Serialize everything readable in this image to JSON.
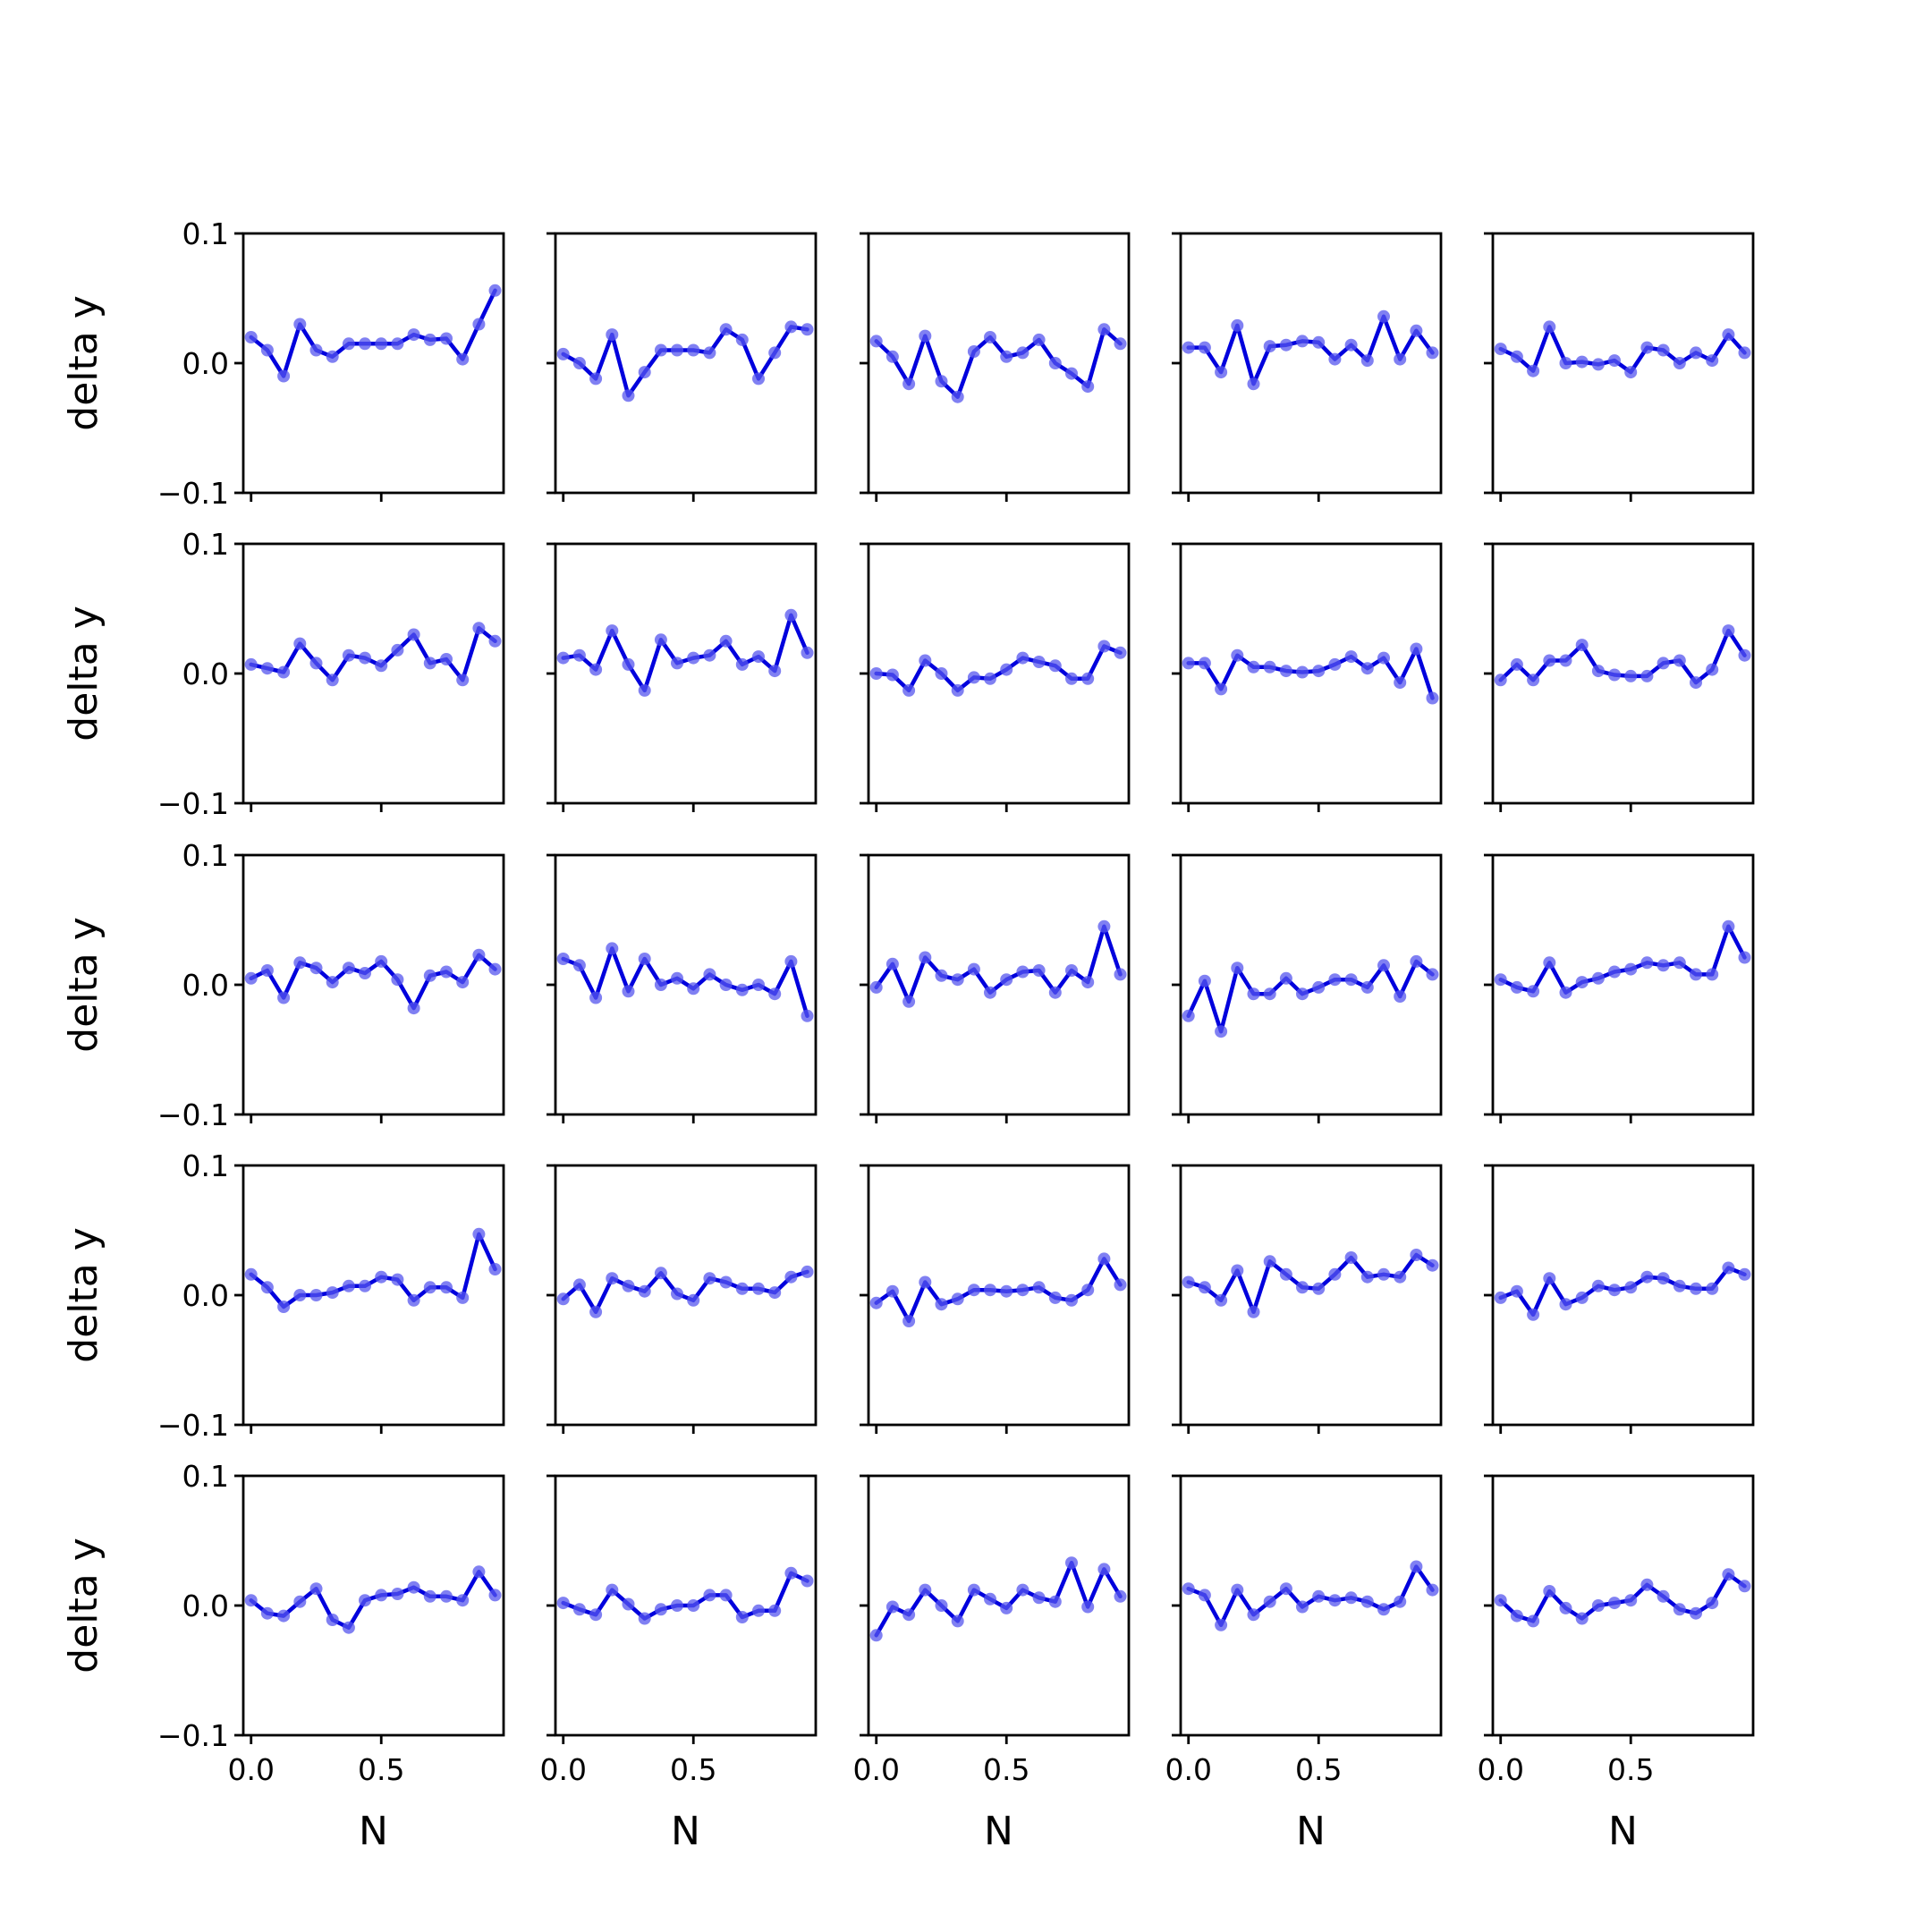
{
  "chart_data": {
    "type": "line",
    "layout": "5x5 grid of subplots",
    "x": [
      0.0,
      0.0625,
      0.125,
      0.1875,
      0.25,
      0.3125,
      0.375,
      0.4375,
      0.5,
      0.5625,
      0.625,
      0.6875,
      0.75,
      0.8125,
      0.875,
      0.9375
    ],
    "ylim": [
      -0.1,
      0.1
    ],
    "xlim": [
      -0.03,
      0.97
    ],
    "yticks": [
      -0.1,
      0.0,
      0.1
    ],
    "xticks": [
      0.0,
      0.5
    ],
    "ytick_labels": [
      "−0.1",
      "0.0",
      "0.1"
    ],
    "xtick_labels": [
      "0.0",
      "0.5"
    ],
    "ylabel": "delta y",
    "xlabel": "N",
    "grid": false,
    "colors": {
      "line": "#0000dd",
      "marker": "#5555ee"
    },
    "panels": [
      [
        0.02,
        0.01,
        -0.01,
        0.03,
        0.01,
        0.005,
        0.015,
        0.015,
        0.015,
        0.015,
        0.022,
        0.018,
        0.019,
        0.003,
        0.03,
        0.056
      ],
      [
        0.007,
        0.0,
        -0.012,
        0.022,
        -0.025,
        -0.007,
        0.01,
        0.01,
        0.01,
        0.008,
        0.026,
        0.018,
        -0.012,
        0.008,
        0.028,
        0.026
      ],
      [
        0.017,
        0.005,
        -0.016,
        0.021,
        -0.014,
        -0.026,
        0.009,
        0.02,
        0.005,
        0.008,
        0.018,
        0.0,
        -0.008,
        -0.018,
        0.026,
        0.015
      ],
      [
        0.012,
        0.012,
        -0.007,
        0.029,
        -0.016,
        0.013,
        0.014,
        0.017,
        0.016,
        0.003,
        0.014,
        0.002,
        0.036,
        0.003,
        0.025,
        0.008
      ],
      [
        0.011,
        0.005,
        -0.006,
        0.028,
        0.0,
        0.001,
        -0.001,
        0.002,
        -0.007,
        0.012,
        0.01,
        0.0,
        0.008,
        0.002,
        0.022,
        0.008
      ],
      [
        0.007,
        0.004,
        0.001,
        0.023,
        0.008,
        -0.005,
        0.014,
        0.012,
        0.006,
        0.018,
        0.03,
        0.008,
        0.011,
        -0.005,
        0.035,
        0.025
      ],
      [
        0.012,
        0.014,
        0.003,
        0.033,
        0.007,
        -0.013,
        0.026,
        0.008,
        0.012,
        0.014,
        0.025,
        0.007,
        0.013,
        0.002,
        0.045,
        0.016
      ],
      [
        0.0,
        -0.001,
        -0.013,
        0.01,
        0.0,
        -0.013,
        -0.003,
        -0.004,
        0.003,
        0.012,
        0.009,
        0.006,
        -0.004,
        -0.004,
        0.021,
        0.016
      ],
      [
        0.008,
        0.008,
        -0.012,
        0.014,
        0.005,
        0.005,
        0.002,
        0.001,
        0.002,
        0.007,
        0.013,
        0.004,
        0.012,
        -0.007,
        0.019,
        -0.019
      ],
      [
        -0.005,
        0.007,
        -0.005,
        0.01,
        0.01,
        0.022,
        0.002,
        -0.001,
        -0.002,
        -0.002,
        0.008,
        0.01,
        -0.007,
        0.003,
        0.033,
        0.014
      ]
    ],
    "panels_rows_3_to_5": [
      [
        0.005,
        0.011,
        -0.01,
        0.017,
        0.013,
        0.002,
        0.013,
        0.009,
        0.018,
        0.004,
        -0.018,
        0.007,
        0.01,
        0.002,
        0.023,
        0.012
      ],
      [
        0.02,
        0.015,
        -0.01,
        0.028,
        -0.005,
        0.02,
        0.0,
        0.005,
        -0.003,
        0.008,
        0.0,
        -0.004,
        0.0,
        -0.007,
        0.018,
        -0.024
      ],
      [
        -0.002,
        0.016,
        -0.013,
        0.021,
        0.007,
        0.004,
        0.012,
        -0.006,
        0.004,
        0.01,
        0.011,
        -0.006,
        0.011,
        0.002,
        0.045,
        0.008
      ],
      [
        -0.024,
        0.003,
        -0.036,
        0.013,
        -0.007,
        -0.007,
        0.005,
        -0.007,
        -0.002,
        0.004,
        0.004,
        -0.002,
        0.015,
        -0.009,
        0.018,
        0.008
      ],
      [
        0.004,
        -0.002,
        -0.005,
        0.017,
        -0.006,
        0.002,
        0.005,
        0.01,
        0.012,
        0.017,
        0.015,
        0.017,
        0.008,
        0.008,
        0.045,
        0.021
      ],
      [
        0.016,
        0.006,
        -0.009,
        0.0,
        0.0,
        0.002,
        0.007,
        0.007,
        0.014,
        0.012,
        -0.004,
        0.006,
        0.006,
        -0.002,
        0.047,
        0.02
      ],
      [
        -0.003,
        0.008,
        -0.013,
        0.013,
        0.007,
        0.003,
        0.017,
        0.001,
        -0.004,
        0.013,
        0.01,
        0.005,
        0.005,
        0.002,
        0.014,
        0.018
      ],
      [
        -0.006,
        0.003,
        -0.02,
        0.01,
        -0.007,
        -0.003,
        0.004,
        0.004,
        0.003,
        0.004,
        0.006,
        -0.002,
        -0.004,
        0.004,
        0.028,
        0.008
      ],
      [
        0.01,
        0.006,
        -0.004,
        0.019,
        -0.013,
        0.026,
        0.016,
        0.006,
        0.005,
        0.016,
        0.029,
        0.014,
        0.016,
        0.014,
        0.031,
        0.023
      ],
      [
        -0.002,
        0.003,
        -0.015,
        0.013,
        -0.007,
        -0.002,
        0.007,
        0.004,
        0.006,
        0.014,
        0.013,
        0.007,
        0.005,
        0.005,
        0.021,
        0.016
      ],
      [
        0.004,
        -0.006,
        -0.008,
        0.003,
        0.013,
        -0.011,
        -0.017,
        0.004,
        0.008,
        0.009,
        0.014,
        0.007,
        0.007,
        0.004,
        0.026,
        0.008
      ],
      [
        0.002,
        -0.003,
        -0.007,
        0.012,
        0.001,
        -0.01,
        -0.003,
        0.0,
        0.0,
        0.008,
        0.008,
        -0.009,
        -0.004,
        -0.004,
        0.025,
        0.019
      ],
      [
        -0.023,
        -0.001,
        -0.007,
        0.012,
        0.0,
        -0.012,
        0.012,
        0.005,
        -0.002,
        0.012,
        0.006,
        0.003,
        0.033,
        -0.001,
        0.028,
        0.007
      ],
      [
        0.013,
        0.008,
        -0.015,
        0.012,
        -0.007,
        0.003,
        0.013,
        -0.001,
        0.007,
        0.004,
        0.006,
        0.003,
        -0.003,
        0.003,
        0.03,
        0.012
      ],
      [
        0.004,
        -0.008,
        -0.012,
        0.011,
        -0.002,
        -0.01,
        0.0,
        0.002,
        0.004,
        0.016,
        0.007,
        -0.003,
        -0.006,
        0.002,
        0.024,
        0.015
      ]
    ]
  }
}
